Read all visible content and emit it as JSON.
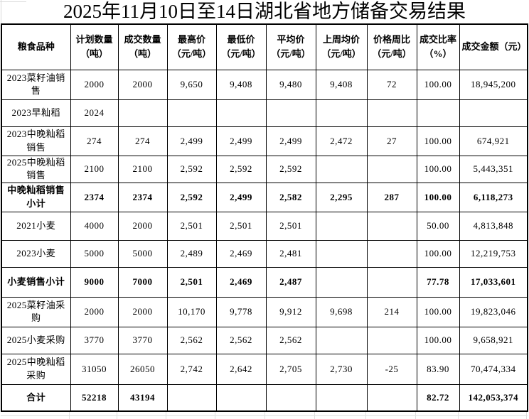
{
  "title": "2025年11月10日至14日湖北省地方储备交易结果",
  "table": {
    "column_headers": [
      [
        "粮食品种"
      ],
      [
        "计划数量",
        "（吨）"
      ],
      [
        "成交数量",
        "（吨）"
      ],
      [
        "最高价",
        "（元/吨）"
      ],
      [
        "最低价",
        "（元/吨）"
      ],
      [
        "平均价",
        "（元/吨）"
      ],
      [
        "上周均价",
        "（元/吨）"
      ],
      [
        "价格周比",
        "（元/吨）"
      ],
      [
        "成交比率",
        "（%）"
      ],
      [
        "成交金额（元）"
      ]
    ],
    "rows": [
      {
        "name": "2023菜籽油销\n售",
        "bold": false,
        "values": [
          "2000",
          "2000",
          "9,650",
          "9,408",
          "9,480",
          "9,408",
          "72",
          "100.00",
          "18,945,200"
        ]
      },
      {
        "name": "2023早籼稻",
        "bold": false,
        "values": [
          "2024",
          "",
          "",
          "",
          "",
          "",
          "",
          "",
          ""
        ]
      },
      {
        "name": "2023中晚籼稻\n销售",
        "bold": false,
        "values": [
          "274",
          "274",
          "2,499",
          "2,499",
          "2,499",
          "2,472",
          "27",
          "100.00",
          "674,921"
        ]
      },
      {
        "name": "2025中晚籼稻\n销售",
        "bold": false,
        "values": [
          "2100",
          "2100",
          "2,592",
          "2,592",
          "2,592",
          "",
          "",
          "100.00",
          "5,443,351"
        ]
      },
      {
        "name": "中晚籼稻销售\n小计",
        "bold": true,
        "values": [
          "2374",
          "2374",
          "2,592",
          "2,499",
          "2,582",
          "2,295",
          "287",
          "100.00",
          "6,118,273"
        ]
      },
      {
        "name": "2021小麦",
        "bold": false,
        "values": [
          "4000",
          "2000",
          "2,501",
          "2,501",
          "2,501",
          "",
          "",
          "50.00",
          "4,813,848"
        ]
      },
      {
        "name": "2023小麦",
        "bold": false,
        "values": [
          "5000",
          "5000",
          "2,489",
          "2,469",
          "2,481",
          "",
          "",
          "100.00",
          "12,219,753"
        ]
      },
      {
        "name": "小麦销售小计",
        "bold": true,
        "values": [
          "9000",
          "7000",
          "2,501",
          "2,469",
          "2,487",
          "",
          "",
          "77.78",
          "17,033,601"
        ]
      },
      {
        "name": "2025菜籽油采\n购",
        "bold": false,
        "values": [
          "2000",
          "2000",
          "10,170",
          "9,778",
          "9,912",
          "9,698",
          "214",
          "100.00",
          "19,823,046"
        ]
      },
      {
        "name": "2025小麦采购",
        "bold": false,
        "values": [
          "3770",
          "3770",
          "2,562",
          "2,562",
          "2,562",
          "",
          "",
          "100.00",
          "9,658,921"
        ]
      },
      {
        "name": "2025中晚籼稻\n采购",
        "bold": false,
        "values": [
          "31050",
          "26050",
          "2,742",
          "2,642",
          "2,705",
          "2,730",
          "-25",
          "83.90",
          "70,474,334"
        ]
      },
      {
        "name": "合计",
        "bold": true,
        "values": [
          "52218",
          "43194",
          "",
          "",
          "",
          "",
          "",
          "82.72",
          "142,053,374"
        ]
      }
    ]
  },
  "colors": {
    "border": "#000000",
    "faint_gridline": "#e0e0e0",
    "text": "#000000",
    "background": "#ffffff"
  }
}
